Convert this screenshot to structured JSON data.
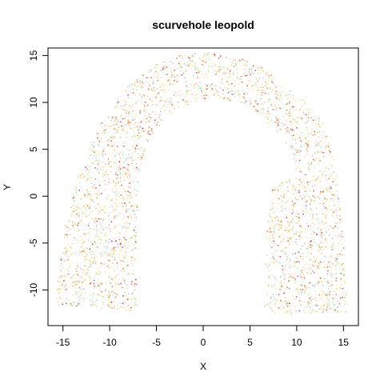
{
  "chart_data": {
    "type": "scatter",
    "title": "scurvehole leopold",
    "xlabel": "X",
    "ylabel": "Y",
    "xlim": [
      -16.6,
      16.6
    ],
    "ylim": [
      -13.8,
      15.8
    ],
    "xticks": [
      -15,
      -10,
      -5,
      0,
      5,
      10,
      15
    ],
    "yticks": [
      -10,
      -5,
      0,
      5,
      10,
      15
    ],
    "xtick_labels": [
      "-15",
      "-10",
      "-5",
      "0",
      "5",
      "10",
      "15"
    ],
    "ytick_labels": [
      "-10",
      "-5",
      "0",
      "5",
      "10",
      "15"
    ],
    "grid": false,
    "legend": "none",
    "point_count_estimate": 3000,
    "color_scale": [
      "#abdda4",
      "#e6f598",
      "#fee08b",
      "#fdae61",
      "#f46d43",
      "#d53e4f"
    ],
    "point_colors": [
      "#abdda4",
      "#abdda4",
      "#c8e6b4",
      "#e6f598",
      "#e6f598",
      "#fee08b",
      "#fee08b",
      "#fee08b",
      "#fdd49e",
      "#fdae61",
      "#f9b35a",
      "#f46d43",
      "#d53e4f",
      "#9ecae1"
    ],
    "shape": {
      "arch_rings": [
        {
          "name": "outer",
          "points": [
            [
              -15.8,
              -11.0
            ],
            [
              -15.3,
              -6.5
            ],
            [
              -14.5,
              -2.0
            ],
            [
              -13.3,
              2.8
            ],
            [
              -11.3,
              7.3
            ],
            [
              -8.6,
              11.3
            ],
            [
              -5.5,
              13.8
            ],
            [
              -3.0,
              15.0
            ],
            [
              0.0,
              15.3
            ],
            [
              3.0,
              14.9
            ],
            [
              5.6,
              14.3
            ],
            [
              8.5,
              11.9
            ],
            [
              10.8,
              10.3
            ],
            [
              12.8,
              7.8
            ],
            [
              13.8,
              5.0
            ],
            [
              14.3,
              2.0
            ],
            [
              14.8,
              -3.0
            ],
            [
              15.3,
              -8.0
            ],
            [
              15.4,
              -12.4
            ],
            [
              6.5,
              -12.6
            ],
            [
              6.8,
              -2.0
            ],
            [
              7.5,
              1.2
            ],
            [
              10.0,
              2.5
            ],
            [
              9.5,
              4.8
            ],
            [
              7.6,
              7.2
            ],
            [
              4.5,
              9.8
            ],
            [
              1.8,
              10.4
            ],
            [
              -0.5,
              10.2
            ],
            [
              -3.0,
              9.0
            ],
            [
              -5.2,
              6.8
            ],
            [
              -6.3,
              4.5
            ],
            [
              -6.9,
              1.5
            ],
            [
              -7.1,
              -3.0
            ],
            [
              -7.1,
              -12.3
            ],
            [
              -15.2,
              -11.6
            ]
          ]
        }
      ],
      "density_hotspots": [
        {
          "x": -13.8,
          "y": -8.0,
          "color": "#fdae61"
        },
        {
          "x": -9.3,
          "y": -10.0,
          "color": "#f46d43"
        },
        {
          "x": -9.0,
          "y": 2.0,
          "color": "#fdae61"
        },
        {
          "x": -5.6,
          "y": 7.0,
          "color": "#f46d43"
        },
        {
          "x": -9.0,
          "y": 8.5,
          "color": "#fdae61"
        },
        {
          "x": 7.5,
          "y": 11.8,
          "color": "#fdae61"
        },
        {
          "x": 12.6,
          "y": 7.3,
          "color": "#fdae61"
        },
        {
          "x": 10.0,
          "y": -10.0,
          "color": "#f46d43"
        },
        {
          "x": 12.5,
          "y": -6.5,
          "color": "#fdae61"
        },
        {
          "x": 8.5,
          "y": -4.0,
          "color": "#fdae61"
        }
      ]
    }
  }
}
